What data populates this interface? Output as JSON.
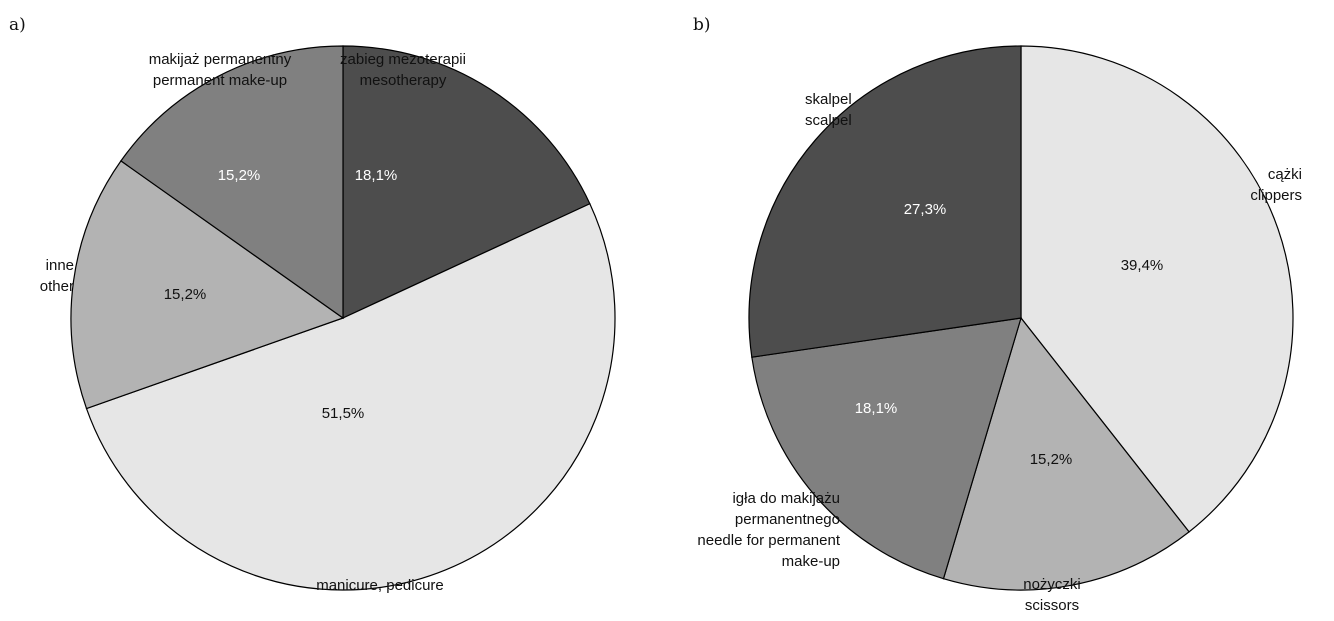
{
  "chart_data": [
    {
      "type": "pie",
      "panel": "a)",
      "slices": [
        {
          "value": 18.1,
          "percent_label": "18,1%",
          "label_lines": [
            "zabieg mezoterapii",
            "mesotherapy"
          ],
          "color": "#4d4d4d"
        },
        {
          "value": 51.5,
          "percent_label": "51,5%",
          "label_lines": [
            "manicure, pedicure"
          ],
          "color": "#e6e6e6"
        },
        {
          "value": 15.2,
          "percent_label": "15,2%",
          "label_lines": [
            "inne",
            "other"
          ],
          "color": "#b3b3b3"
        },
        {
          "value": 15.2,
          "percent_label": "15,2%",
          "label_lines": [
            "makijaż permanentny",
            "permanent make-up"
          ],
          "color": "#808080"
        }
      ]
    },
    {
      "type": "pie",
      "panel": "b)",
      "slices": [
        {
          "value": 39.4,
          "percent_label": "39,4%",
          "label_lines": [
            "cążki",
            "clippers"
          ],
          "color": "#e6e6e6"
        },
        {
          "value": 15.2,
          "percent_label": "15,2%",
          "label_lines": [
            "nożyczki",
            "scissors"
          ],
          "color": "#b3b3b3"
        },
        {
          "value": 18.1,
          "percent_label": "18,1%",
          "label_lines": [
            "igła do makijażu",
            "permanentnego",
            "needle for permanent",
            "make-up"
          ],
          "color": "#808080"
        },
        {
          "value": 27.3,
          "percent_label": "27,3%",
          "label_lines": [
            "skalpel",
            "scalpel"
          ],
          "color": "#4d4d4d"
        }
      ]
    }
  ]
}
